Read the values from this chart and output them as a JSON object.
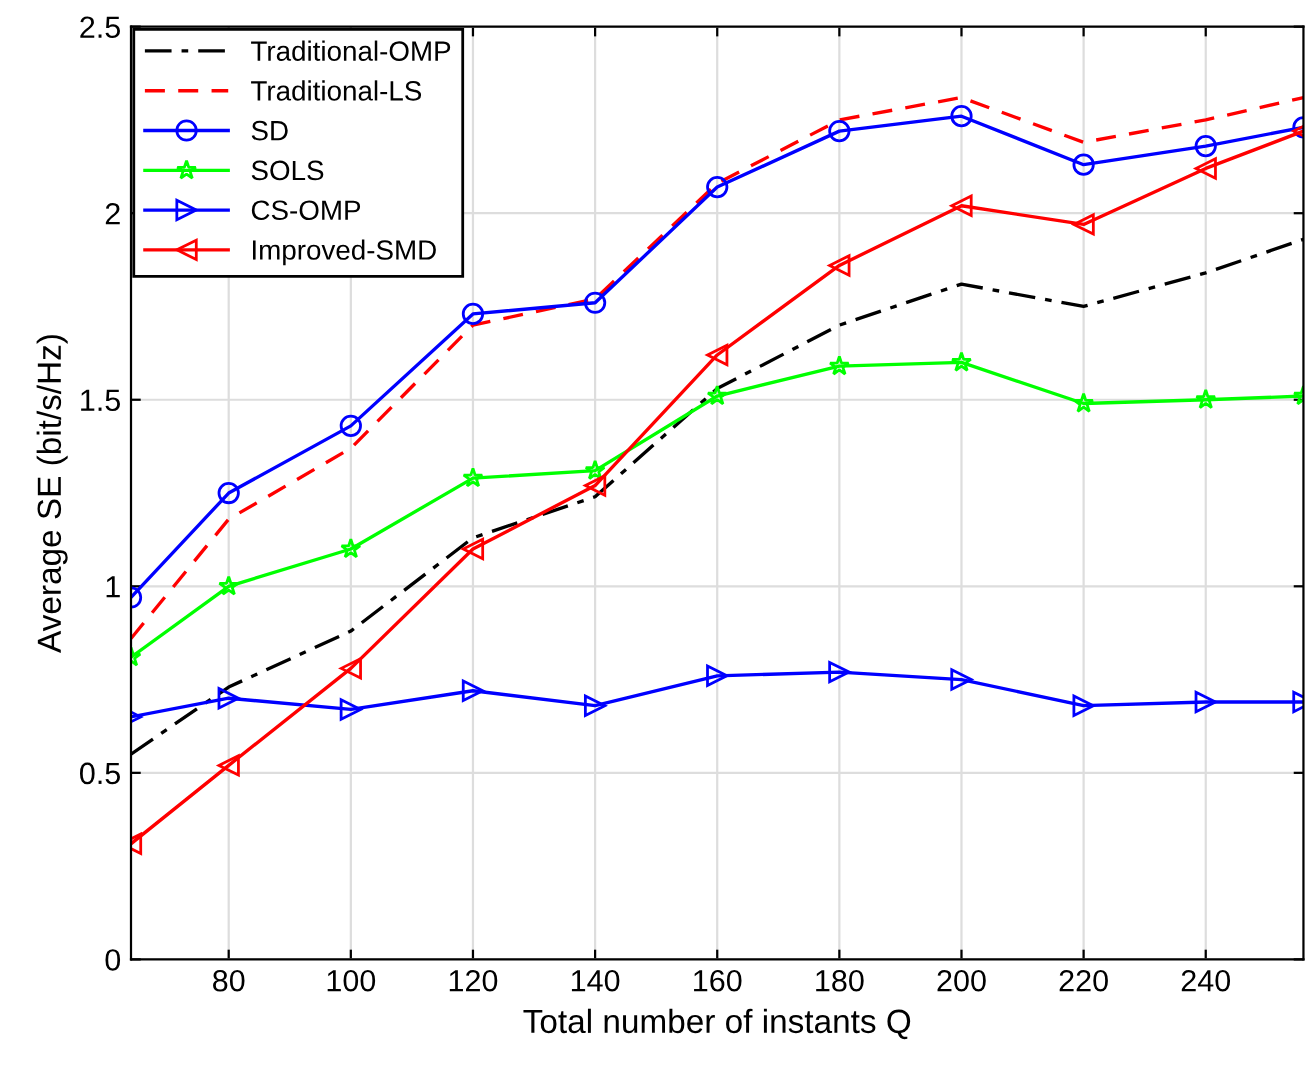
{
  "chart_data": {
    "type": "line",
    "xlabel": "Total number of instants Q",
    "ylabel": "Average SE (bit/s/Hz)",
    "x": [
      64,
      80,
      100,
      120,
      140,
      160,
      180,
      200,
      220,
      240,
      256
    ],
    "xlim": [
      64,
      256
    ],
    "xticks": [
      80,
      100,
      120,
      140,
      160,
      180,
      200,
      220,
      240
    ],
    "ylim": [
      0,
      2.5
    ],
    "yticks": [
      0,
      0.5,
      1,
      1.5,
      2,
      2.5
    ],
    "grid": true,
    "legend": "top left",
    "series": [
      {
        "name": "Traditional-OMP",
        "color": "#000000",
        "line_style": "dashdot",
        "marker": "none",
        "values": [
          0.55,
          0.73,
          0.88,
          1.13,
          1.24,
          1.53,
          1.7,
          1.81,
          1.75,
          1.84,
          1.93
        ]
      },
      {
        "name": "Traditional-LS",
        "color": "#ff0000",
        "line_style": "dashed",
        "marker": "none",
        "values": [
          0.86,
          1.18,
          1.37,
          1.7,
          1.77,
          2.08,
          2.25,
          2.31,
          2.19,
          2.25,
          2.31
        ]
      },
      {
        "name": "SD",
        "color": "#0000ff",
        "line_style": "solid",
        "marker": "circle",
        "values": [
          0.97,
          1.25,
          1.43,
          1.73,
          1.76,
          2.07,
          2.22,
          2.26,
          2.13,
          2.18,
          2.23
        ]
      },
      {
        "name": "SOLS",
        "color": "#00ff00",
        "line_style": "solid",
        "marker": "star",
        "values": [
          0.81,
          1.0,
          1.1,
          1.29,
          1.31,
          1.51,
          1.59,
          1.6,
          1.49,
          1.5,
          1.51
        ]
      },
      {
        "name": "CS-OMP",
        "color": "#0000ff",
        "line_style": "solid",
        "marker": "triangle-right",
        "values": [
          0.65,
          0.7,
          0.67,
          0.72,
          0.68,
          0.76,
          0.77,
          0.75,
          0.68,
          0.69,
          0.69
        ]
      },
      {
        "name": "Improved-SMD",
        "color": "#ff0000",
        "line_style": "solid",
        "marker": "triangle-left",
        "values": [
          0.31,
          0.52,
          0.78,
          1.1,
          1.27,
          1.62,
          1.86,
          2.02,
          1.97,
          2.12,
          2.22
        ]
      }
    ]
  }
}
